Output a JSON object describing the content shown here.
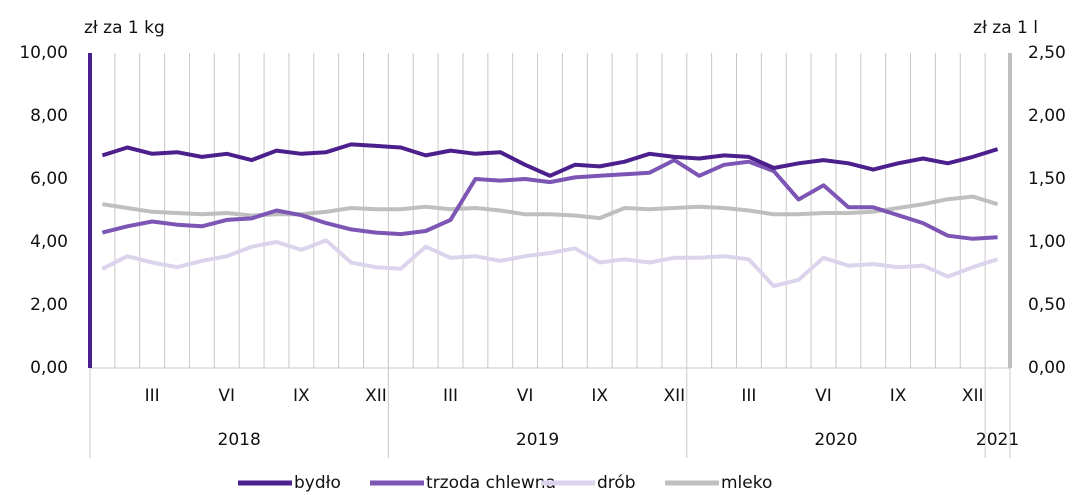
{
  "chart_data": {
    "type": "line",
    "y_label": "zł za 1 kg",
    "y2_label": "zł za 1 l",
    "categories": [
      null,
      null,
      "III",
      null,
      null,
      "VI",
      null,
      null,
      "IX",
      null,
      null,
      "XII",
      null,
      null,
      "III",
      null,
      null,
      "VI",
      null,
      null,
      "IX",
      null,
      null,
      "XII",
      null,
      null,
      "III",
      null,
      null,
      "VI",
      null,
      null,
      "IX",
      null,
      null,
      "XII",
      null
    ],
    "years": [
      "2018",
      "2019",
      "2020",
      "2021"
    ],
    "ylim": [
      0,
      10
    ],
    "yticks": [
      {
        "value": 0,
        "label": "0,00"
      },
      {
        "value": 2,
        "label": "2,00"
      },
      {
        "value": 4,
        "label": "4,00"
      },
      {
        "value": 6,
        "label": "6,00"
      },
      {
        "value": 8,
        "label": "8,00"
      },
      {
        "value": 10,
        "label": "10,00"
      }
    ],
    "y2lim": [
      0,
      2.5
    ],
    "y2ticks": [
      {
        "value": 0,
        "label": "0,00"
      },
      {
        "value": 0.5,
        "label": "0,50"
      },
      {
        "value": 1,
        "label": "1,00"
      },
      {
        "value": 1.5,
        "label": "1,50"
      },
      {
        "value": 2,
        "label": "2,00"
      },
      {
        "value": 2.5,
        "label": "2,50"
      }
    ],
    "grid": "x",
    "legend": "bottom",
    "series": [
      {
        "name": "bydło",
        "color": "#4b1f8c",
        "values": [
          6.75,
          7.0,
          6.8,
          6.85,
          6.7,
          6.8,
          6.6,
          6.9,
          6.8,
          6.85,
          7.1,
          7.05,
          7.0,
          6.75,
          6.9,
          6.8,
          6.85,
          6.45,
          6.1,
          6.45,
          6.4,
          6.55,
          6.8,
          6.7,
          6.65,
          6.75,
          6.7,
          6.35,
          6.5,
          6.6,
          6.5,
          6.3,
          6.5,
          6.65,
          6.5,
          6.7,
          6.95
        ]
      },
      {
        "name": "trzoda chlewna",
        "color": "#7c55b5",
        "values": [
          4.3,
          4.5,
          4.65,
          4.55,
          4.5,
          4.7,
          4.75,
          5.0,
          4.85,
          4.6,
          4.4,
          4.3,
          4.25,
          4.35,
          4.7,
          6.0,
          5.95,
          6.0,
          5.9,
          6.05,
          6.1,
          6.15,
          6.2,
          6.6,
          6.1,
          6.45,
          6.55,
          6.25,
          5.35,
          5.8,
          5.1,
          5.1,
          4.85,
          4.6,
          4.2,
          4.1,
          4.15
        ]
      },
      {
        "name": "drób",
        "color": "#dcd3ec",
        "values": [
          3.15,
          3.55,
          3.35,
          3.2,
          3.4,
          3.55,
          3.85,
          4.0,
          3.75,
          4.05,
          3.35,
          3.2,
          3.15,
          3.85,
          3.5,
          3.55,
          3.4,
          3.55,
          3.65,
          3.8,
          3.35,
          3.45,
          3.35,
          3.5,
          3.5,
          3.55,
          3.45,
          2.6,
          2.8,
          3.5,
          3.25,
          3.3,
          3.2,
          3.25,
          2.9,
          3.2,
          3.45
        ]
      },
      {
        "name": "mleko",
        "color": "#bfbfbf",
        "axis": "y2",
        "values": [
          1.3,
          1.27,
          1.24,
          1.23,
          1.22,
          1.23,
          1.21,
          1.22,
          1.22,
          1.24,
          1.27,
          1.26,
          1.26,
          1.28,
          1.26,
          1.27,
          1.25,
          1.22,
          1.22,
          1.21,
          1.19,
          1.27,
          1.26,
          1.27,
          1.28,
          1.27,
          1.25,
          1.22,
          1.22,
          1.23,
          1.23,
          1.24,
          1.27,
          1.3,
          1.34,
          1.36,
          1.3
        ]
      }
    ]
  }
}
